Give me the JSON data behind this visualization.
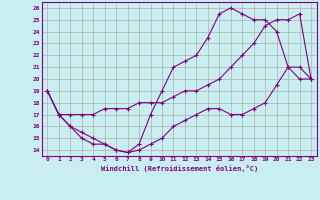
{
  "xlabel": "Windchill (Refroidissement éolien,°C)",
  "bg_color": "#c8eef0",
  "line_color": "#800080",
  "grid_color": "#b0b0b0",
  "xlim": [
    -0.5,
    23.5
  ],
  "ylim": [
    13.5,
    26.5
  ],
  "xticks": [
    0,
    1,
    2,
    3,
    4,
    5,
    6,
    7,
    8,
    9,
    10,
    11,
    12,
    13,
    14,
    15,
    16,
    17,
    18,
    19,
    20,
    21,
    22,
    23
  ],
  "yticks": [
    14,
    15,
    16,
    17,
    18,
    19,
    20,
    21,
    22,
    23,
    24,
    25,
    26
  ],
  "line1_x": [
    0,
    1,
    2,
    3,
    4,
    5,
    6,
    7,
    8,
    9,
    10,
    11,
    12,
    13,
    14,
    15,
    16,
    17,
    18,
    19,
    20,
    21,
    22,
    23
  ],
  "line1_y": [
    19,
    17,
    17,
    17,
    17,
    17.5,
    17.5,
    17.5,
    18,
    18,
    18,
    18.5,
    19,
    19,
    19.5,
    20,
    21,
    22,
    23,
    24.5,
    25,
    25,
    25.5,
    20
  ],
  "line2_x": [
    0,
    1,
    2,
    3,
    4,
    5,
    6,
    7,
    8,
    9,
    10,
    11,
    12,
    13,
    14,
    15,
    16,
    17,
    18,
    19,
    20,
    21,
    22,
    23
  ],
  "line2_y": [
    19,
    17,
    16,
    15,
    14.5,
    14.5,
    14,
    13.8,
    14.5,
    17,
    19,
    21,
    21.5,
    22,
    23.5,
    25.5,
    26,
    25.5,
    25,
    25,
    24,
    21,
    21,
    20
  ],
  "line3_x": [
    0,
    1,
    2,
    3,
    4,
    5,
    6,
    7,
    8,
    9,
    10,
    11,
    12,
    13,
    14,
    15,
    16,
    17,
    18,
    19,
    20,
    21,
    22,
    23
  ],
  "line3_y": [
    19,
    17,
    16,
    15.5,
    15,
    14.5,
    14,
    13.8,
    14,
    14.5,
    15,
    16,
    16.5,
    17,
    17.5,
    17.5,
    17,
    17,
    17.5,
    18,
    19.5,
    21,
    20,
    20
  ]
}
